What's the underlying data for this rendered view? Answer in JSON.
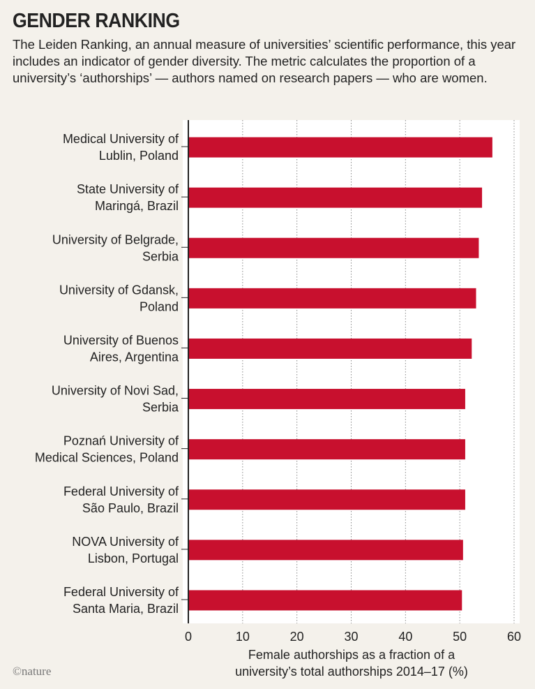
{
  "title": "GENDER RANKING",
  "subtitle": "The Leiden Ranking, an annual measure of universities’ scientific performance, this year includes an indicator of gender diversity. The metric calculates the proportion of a university’s ‘authorships’ — authors named on research papers — who are women.",
  "credit": "©nature",
  "chart_data": {
    "type": "bar",
    "orientation": "horizontal",
    "categories": [
      [
        "Medical University of",
        "Lublin, Poland"
      ],
      [
        "State University of",
        "Maringá, Brazil"
      ],
      [
        "University of Belgrade,",
        "Serbia"
      ],
      [
        "University of Gdansk,",
        "Poland"
      ],
      [
        "University of Buenos",
        "Aires, Argentina"
      ],
      [
        "University of Novi Sad,",
        "Serbia"
      ],
      [
        "Poznań University of",
        "Medical Sciences, Poland"
      ],
      [
        "Federal University of",
        "São Paulo, Brazil"
      ],
      [
        "NOVA University of",
        "Lisbon, Portugal"
      ],
      [
        "Federal University of",
        "Santa Maria, Brazil"
      ]
    ],
    "values": [
      56.0,
      54.1,
      53.5,
      53.0,
      52.2,
      51.0,
      51.0,
      51.0,
      50.6,
      50.4
    ],
    "xlim": [
      0,
      60
    ],
    "xticks": [
      "0",
      "10",
      "20",
      "30",
      "40",
      "50",
      "60"
    ],
    "xlabel": [
      "Female authorships as a fraction of a",
      "university’s total authorships 2014–17 (%)"
    ],
    "grid": true,
    "bar_color": "#c8102e"
  }
}
